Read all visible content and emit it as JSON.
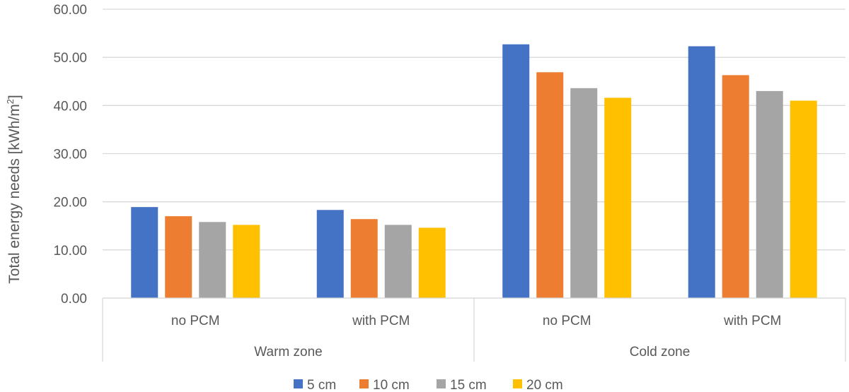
{
  "chart_data": {
    "type": "bar",
    "title": "",
    "ylabel": "Total energy needs [kWh/m",
    "ylabel_sup": "2",
    "ylabel_close": "]",
    "ylim": [
      0,
      60
    ],
    "yticks": [
      "0.00",
      "10.00",
      "20.00",
      "30.00",
      "40.00",
      "50.00",
      "60.00"
    ],
    "ytick_values": [
      0,
      10,
      20,
      30,
      40,
      50,
      60
    ],
    "groups": [
      "Warm zone",
      "Cold zone"
    ],
    "categories": [
      "no PCM",
      "with PCM",
      "no PCM",
      "with PCM"
    ],
    "series": [
      {
        "name": "5 cm",
        "color": "#4472C4",
        "values": [
          18.9,
          18.3,
          52.7,
          52.3
        ]
      },
      {
        "name": "10 cm",
        "color": "#ED7D31",
        "values": [
          17.0,
          16.4,
          46.9,
          46.3
        ]
      },
      {
        "name": "15 cm",
        "color": "#A5A5A5",
        "values": [
          15.8,
          15.2,
          43.6,
          43.0
        ]
      },
      {
        "name": "20 cm",
        "color": "#FFC000",
        "values": [
          15.2,
          14.6,
          41.6,
          41.0
        ]
      }
    ],
    "grid": true,
    "legend_position": "bottom"
  }
}
